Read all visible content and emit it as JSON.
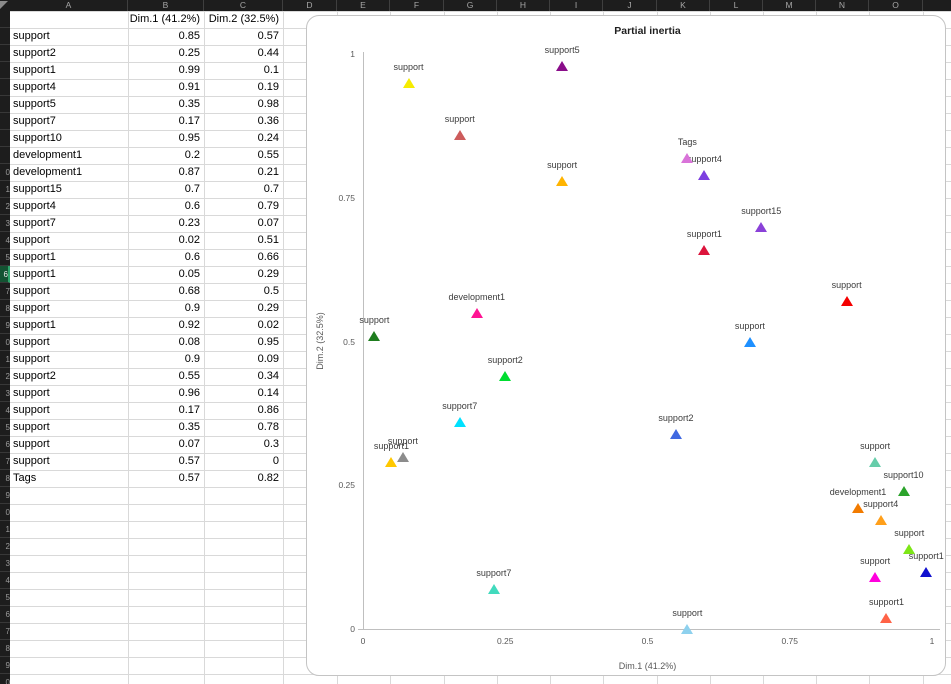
{
  "sheet": {
    "column_letters": [
      "A",
      "B",
      "C",
      "D",
      "E",
      "F",
      "G",
      "H",
      "I",
      "J",
      "K",
      "L",
      "M",
      "N",
      "O"
    ],
    "header_row": {
      "b": "Dim.1 (41.2%)",
      "c": "Dim.2 (32.5%)"
    },
    "selected_row_number": 16
  },
  "chart": {
    "title": "Partial inertia",
    "xlabel": "Dim.1 (41.2%)",
    "ylabel": "Dim.2 (32.5%)",
    "x_ticks": [
      "0",
      "0.25",
      "0.5",
      "0.75",
      "1"
    ],
    "y_ticks": [
      "1",
      "0.75",
      "0.5",
      "0.25",
      "0"
    ]
  },
  "chart_data": {
    "type": "scatter",
    "title": "Partial inertia",
    "xlabel": "Dim.1 (41.2%)",
    "ylabel": "Dim.2 (32.5%)",
    "xlim": [
      0,
      1
    ],
    "ylim": [
      0,
      1
    ],
    "grid": false,
    "legend": "none",
    "marker": "triangle-up",
    "points": [
      {
        "label": "support",
        "x": 0.85,
        "y": 0.57,
        "color": "#f40000"
      },
      {
        "label": "support2",
        "x": 0.25,
        "y": 0.44,
        "color": "#00dd30"
      },
      {
        "label": "support1",
        "x": 0.99,
        "y": 0.1,
        "color": "#1010cf"
      },
      {
        "label": "support4",
        "x": 0.91,
        "y": 0.19,
        "color": "#ff9f1a"
      },
      {
        "label": "support5",
        "x": 0.35,
        "y": 0.98,
        "color": "#8a0d8a"
      },
      {
        "label": "support7",
        "x": 0.17,
        "y": 0.36,
        "color": "#00e1ff"
      },
      {
        "label": "support10",
        "x": 0.95,
        "y": 0.24,
        "color": "#2ba32b"
      },
      {
        "label": "development1",
        "x": 0.2,
        "y": 0.55,
        "color": "#ff1493"
      },
      {
        "label": "development1",
        "x": 0.87,
        "y": 0.21,
        "color": "#f27b00"
      },
      {
        "label": "support15",
        "x": 0.7,
        "y": 0.7,
        "color": "#8a41d8"
      },
      {
        "label": "support4",
        "x": 0.6,
        "y": 0.79,
        "color": "#7d3fe0"
      },
      {
        "label": "support7",
        "x": 0.23,
        "y": 0.07,
        "color": "#41dabd"
      },
      {
        "label": "support",
        "x": 0.02,
        "y": 0.51,
        "color": "#1e7d1e"
      },
      {
        "label": "support1",
        "x": 0.6,
        "y": 0.66,
        "color": "#dc143c"
      },
      {
        "label": "support1",
        "x": 0.05,
        "y": 0.29,
        "color": "#ffc800"
      },
      {
        "label": "support",
        "x": 0.68,
        "y": 0.5,
        "color": "#1e90ff"
      },
      {
        "label": "support",
        "x": 0.9,
        "y": 0.29,
        "color": "#66cdaa"
      },
      {
        "label": "support1",
        "x": 0.92,
        "y": 0.02,
        "color": "#ff6347"
      },
      {
        "label": "support",
        "x": 0.08,
        "y": 0.95,
        "color": "#f6ec00"
      },
      {
        "label": "support",
        "x": 0.9,
        "y": 0.09,
        "color": "#ff00dd"
      },
      {
        "label": "support2",
        "x": 0.55,
        "y": 0.34,
        "color": "#4169e1"
      },
      {
        "label": "support",
        "x": 0.96,
        "y": 0.14,
        "color": "#7de617"
      },
      {
        "label": "support",
        "x": 0.17,
        "y": 0.86,
        "color": "#cd5c5c"
      },
      {
        "label": "support",
        "x": 0.35,
        "y": 0.78,
        "color": "#ffb400"
      },
      {
        "label": "support",
        "x": 0.07,
        "y": 0.3,
        "color": "#8c8c8c"
      },
      {
        "label": "support",
        "x": 0.57,
        "y": 0,
        "color": "#8ed1ee"
      },
      {
        "label": "Tags",
        "x": 0.57,
        "y": 0.82,
        "color": "#d973d9"
      }
    ]
  }
}
